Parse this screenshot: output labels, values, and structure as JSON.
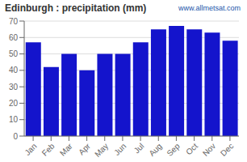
{
  "chart_data": {
    "type": "bar",
    "title": "Edinburgh : precipitation (mm)",
    "annotation": "www.allmetsat.com",
    "categories": [
      "Jan",
      "Feb",
      "Mar",
      "Apr",
      "May",
      "Jun",
      "Jul",
      "Aug",
      "Sep",
      "Oct",
      "Nov",
      "Dec"
    ],
    "values": [
      57,
      42,
      50,
      40,
      50,
      50,
      57,
      65,
      67,
      65,
      63,
      58
    ],
    "color": "#1414CC",
    "ylim": [
      0,
      70
    ],
    "yticks": [
      0,
      10,
      20,
      30,
      40,
      50,
      60,
      70
    ],
    "grid": true
  }
}
